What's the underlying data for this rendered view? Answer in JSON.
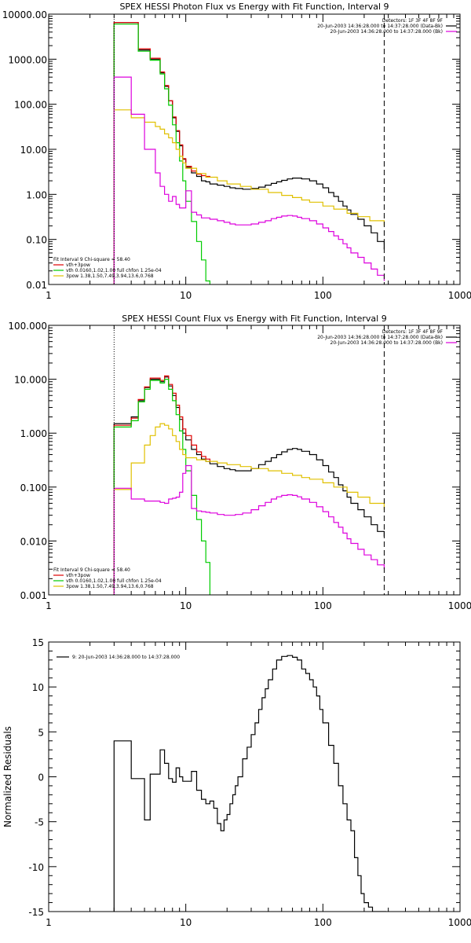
{
  "chart_data": [
    {
      "type": "line",
      "title": "SPEX HESSI Photon Flux vs Energy with Fit Function, Interval 9",
      "xscale": "log",
      "yscale": "log",
      "xlim": [
        1,
        1000
      ],
      "ylim": [
        0.01,
        10000
      ],
      "xticklabels": [
        "1",
        "10",
        "100",
        "1000"
      ],
      "yticklabels": [
        "0.01",
        "0.10",
        "1.00",
        "10.00",
        "100.00",
        "1000.00",
        "10000.00"
      ],
      "vlines": [
        {
          "x": 3,
          "style": "dotted"
        },
        {
          "x": 280,
          "style": "dashed"
        }
      ],
      "legend_top": [
        "Detectors: 1F 3F 4F 8F 9F",
        "20-Jun-2003 14:36:28.000 to 14:37:28.000 (Data-Bk)",
        "20-Jun-2003 14:36:28.000 to 14:37:28.000 (Bk)"
      ],
      "legend_bottom": [
        "Fit Interval 9   Chi-square = 58.40",
        "vth+3pow",
        "vth 0.0160,1.02,1.00  full chfon 1.25e-04",
        "3pow 1.38,1.50,7.49,3.94,13.6,0.768"
      ],
      "series": [
        {
          "color": "#000000",
          "x": [
            3,
            3.5,
            4,
            4.5,
            5,
            5.5,
            6,
            6.5,
            7,
            7.5,
            8,
            8.5,
            9,
            9.5,
            10,
            11,
            12,
            13,
            14,
            15,
            17,
            19,
            21,
            23,
            26,
            30,
            34,
            38,
            42,
            46,
            50,
            55,
            60,
            65,
            70,
            80,
            90,
            100,
            110,
            120,
            130,
            140,
            150,
            160,
            180,
            200,
            225,
            250,
            280
          ],
          "y": [
            6500,
            6500,
            6500,
            1600,
            1600,
            1000,
            1000,
            500,
            250,
            120,
            50,
            25,
            12,
            6,
            4,
            3,
            2.5,
            2.0,
            1.9,
            1.7,
            1.6,
            1.5,
            1.4,
            1.35,
            1.3,
            1.35,
            1.45,
            1.6,
            1.75,
            1.9,
            2.05,
            2.2,
            2.3,
            2.3,
            2.2,
            2.0,
            1.7,
            1.4,
            1.1,
            0.9,
            0.7,
            0.55,
            0.45,
            0.36,
            0.28,
            0.2,
            0.14,
            0.09,
            0.06
          ]
        },
        {
          "color": "#e00000",
          "x": [
            3,
            3.5,
            4,
            4.5,
            5,
            5.5,
            6,
            6.5,
            7,
            7.5,
            8,
            8.5,
            9,
            9.5,
            10,
            11,
            12,
            13,
            14,
            15
          ],
          "y": [
            6500,
            6500,
            6500,
            1700,
            1700,
            1050,
            1050,
            520,
            260,
            120,
            52,
            26,
            12.5,
            6.2,
            4.2,
            3.3,
            2.8,
            2.6,
            2.5,
            2.4
          ]
        },
        {
          "color": "#00cc00",
          "x": [
            3,
            3.5,
            4,
            4.5,
            5,
            5.5,
            6,
            6.5,
            7,
            7.5,
            8,
            8.5,
            9,
            9.5,
            10,
            11,
            12,
            13,
            14,
            15
          ],
          "y": [
            6000,
            6000,
            6000,
            1500,
            1500,
            950,
            950,
            470,
            220,
            95,
            35,
            14,
            5.5,
            2.0,
            0.7,
            0.25,
            0.09,
            0.035,
            0.012,
            0.005
          ]
        },
        {
          "color": "#e0c000",
          "x": [
            3,
            3.5,
            4,
            4.5,
            5,
            5.5,
            6,
            6.5,
            7,
            7.5,
            8,
            8.5,
            9,
            9.5,
            10,
            12,
            14,
            17,
            20,
            25,
            30,
            40,
            50,
            60,
            70,
            80,
            100,
            120,
            150,
            180,
            220,
            280
          ],
          "y": [
            75,
            75,
            50,
            50,
            40,
            40,
            32,
            28,
            22,
            18,
            14,
            10,
            7,
            5,
            3.8,
            2.9,
            2.4,
            2.0,
            1.7,
            1.5,
            1.3,
            1.1,
            0.95,
            0.85,
            0.75,
            0.67,
            0.55,
            0.47,
            0.38,
            0.32,
            0.26,
            0.2
          ]
        },
        {
          "color": "#dd00dd",
          "x": [
            3,
            3.5,
            4,
            4.5,
            5,
            5.5,
            6,
            6.5,
            7,
            7.5,
            8,
            8.5,
            9,
            9.5,
            10,
            11,
            12,
            13,
            14,
            15,
            17,
            19,
            21,
            23,
            26,
            30,
            34,
            38,
            42,
            46,
            50,
            55,
            60,
            65,
            70,
            80,
            90,
            100,
            110,
            120,
            130,
            140,
            150,
            160,
            180,
            200,
            225,
            250,
            280
          ],
          "y": [
            400,
            400,
            60,
            60,
            10,
            10,
            3,
            1.5,
            1.0,
            0.7,
            0.9,
            0.6,
            0.5,
            0.5,
            1.2,
            0.4,
            0.35,
            0.3,
            0.3,
            0.28,
            0.26,
            0.24,
            0.22,
            0.21,
            0.21,
            0.22,
            0.24,
            0.26,
            0.29,
            0.31,
            0.33,
            0.34,
            0.33,
            0.31,
            0.29,
            0.26,
            0.22,
            0.18,
            0.15,
            0.12,
            0.1,
            0.08,
            0.065,
            0.05,
            0.04,
            0.03,
            0.022,
            0.016,
            0.012
          ]
        }
      ]
    },
    {
      "type": "line",
      "title": "SPEX HESSI Count Flux vs Energy with Fit Function, Interval 9",
      "xscale": "log",
      "yscale": "log",
      "xlim": [
        1,
        1000
      ],
      "ylim": [
        0.001,
        100
      ],
      "xticklabels": [
        "1",
        "10",
        "100",
        "1000"
      ],
      "yticklabels": [
        "0.001",
        "0.010",
        "0.100",
        "1.000",
        "10.000",
        "100.000"
      ],
      "vlines": [
        {
          "x": 3,
          "style": "dotted"
        },
        {
          "x": 280,
          "style": "dashed"
        }
      ],
      "legend_top": [
        "Detectors: 1F 3F 4F 8F 9F",
        "20-Jun-2003 14:36:28.000 to 14:37:28.000 (Data-Bk)",
        "20-Jun-2003 14:36:28.000 to 14:37:28.000 (Bk)"
      ],
      "legend_bottom": [
        "Fit Interval 9   Chi-square = 58.40",
        "vth+3pow",
        "vth 0.0160,1.02,1.00  full chfon 1.25e-04",
        "3pow 1.38,1.50,7.49,3.94,13.6,0.768"
      ],
      "series": [
        {
          "color": "#000000",
          "x": [
            3,
            3.5,
            4,
            4.5,
            5,
            5.5,
            6,
            6.5,
            7,
            7.5,
            8,
            8.5,
            9,
            9.5,
            10,
            11,
            12,
            13,
            14,
            15,
            17,
            19,
            21,
            23,
            26,
            30,
            34,
            38,
            42,
            46,
            50,
            55,
            60,
            65,
            70,
            80,
            90,
            100,
            110,
            120,
            130,
            140,
            150,
            160,
            180,
            200,
            225,
            250,
            280
          ],
          "y": [
            1.5,
            1.5,
            2.0,
            4.0,
            7.0,
            10.0,
            10.0,
            9.0,
            11.0,
            7.5,
            5.0,
            3.0,
            1.8,
            1.0,
            0.75,
            0.5,
            0.4,
            0.33,
            0.3,
            0.27,
            0.24,
            0.22,
            0.21,
            0.2,
            0.2,
            0.22,
            0.26,
            0.3,
            0.35,
            0.4,
            0.45,
            0.5,
            0.52,
            0.5,
            0.46,
            0.4,
            0.32,
            0.25,
            0.19,
            0.15,
            0.11,
            0.085,
            0.065,
            0.05,
            0.038,
            0.028,
            0.02,
            0.015,
            0.012
          ]
        },
        {
          "color": "#e00000",
          "x": [
            3,
            3.5,
            4,
            4.5,
            5,
            5.5,
            6,
            6.5,
            7,
            7.5,
            8,
            8.5,
            9,
            9.5,
            10,
            11,
            12,
            13,
            14,
            15
          ],
          "y": [
            1.4,
            1.4,
            1.9,
            4.2,
            7.2,
            10.5,
            10.5,
            9.5,
            11.5,
            8.0,
            5.5,
            3.3,
            2.0,
            1.2,
            0.9,
            0.6,
            0.45,
            0.37,
            0.33,
            0.3
          ]
        },
        {
          "color": "#00cc00",
          "x": [
            3,
            3.5,
            4,
            4.5,
            5,
            5.5,
            6,
            6.5,
            7,
            7.5,
            8,
            8.5,
            9,
            9.5,
            10,
            11,
            12,
            13,
            14,
            15
          ],
          "y": [
            1.3,
            1.3,
            1.7,
            3.8,
            6.5,
            9.5,
            9.5,
            8.5,
            10,
            6.5,
            4.0,
            2.2,
            1.1,
            0.5,
            0.2,
            0.07,
            0.025,
            0.01,
            0.004,
            0.001
          ]
        },
        {
          "color": "#e0c000",
          "x": [
            3,
            3.5,
            4,
            4.5,
            5,
            5.5,
            6,
            6.5,
            7,
            7.5,
            8,
            8.5,
            9,
            9.5,
            10,
            12,
            14,
            17,
            20,
            25,
            30,
            40,
            50,
            60,
            70,
            80,
            100,
            120,
            150,
            180,
            220,
            280
          ],
          "y": [
            0.09,
            0.09,
            0.28,
            0.28,
            0.6,
            0.9,
            1.3,
            1.5,
            1.4,
            1.2,
            0.9,
            0.7,
            0.5,
            0.4,
            0.35,
            0.32,
            0.3,
            0.28,
            0.26,
            0.24,
            0.22,
            0.2,
            0.18,
            0.165,
            0.15,
            0.14,
            0.12,
            0.1,
            0.08,
            0.065,
            0.05,
            0.038
          ]
        },
        {
          "color": "#dd00dd",
          "x": [
            3,
            3.5,
            4,
            4.5,
            5,
            5.5,
            6,
            6.5,
            7,
            7.5,
            8,
            8.5,
            9,
            9.5,
            10,
            11,
            12,
            13,
            14,
            15,
            17,
            19,
            21,
            23,
            26,
            30,
            34,
            38,
            42,
            46,
            50,
            55,
            60,
            65,
            70,
            80,
            90,
            100,
            110,
            120,
            130,
            140,
            150,
            160,
            180,
            200,
            225,
            250,
            280
          ],
          "y": [
            0.095,
            0.095,
            0.06,
            0.06,
            0.055,
            0.055,
            0.055,
            0.052,
            0.05,
            0.06,
            0.062,
            0.065,
            0.08,
            0.18,
            0.25,
            0.04,
            0.036,
            0.035,
            0.034,
            0.033,
            0.031,
            0.03,
            0.03,
            0.031,
            0.033,
            0.038,
            0.045,
            0.052,
            0.06,
            0.066,
            0.07,
            0.072,
            0.07,
            0.066,
            0.06,
            0.052,
            0.043,
            0.035,
            0.028,
            0.022,
            0.018,
            0.014,
            0.011,
            0.009,
            0.007,
            0.0055,
            0.0045,
            0.0036,
            0.003
          ]
        }
      ]
    },
    {
      "type": "line",
      "title": "",
      "xscale": "log",
      "yscale": "linear",
      "xlim": [
        1,
        1000
      ],
      "ylim": [
        -15,
        15
      ],
      "xticklabels": [
        "1",
        "10",
        "100",
        "1000"
      ],
      "yticklabels": [
        "-15",
        "-10",
        "-5",
        "0",
        "5",
        "10",
        "15"
      ],
      "ylabel": "Normalized Residuals",
      "legend": [
        "9: 20-Jun-2003 14:36:28.000 to 14:37:28.000"
      ],
      "series": [
        {
          "color": "#000000",
          "x": [
            3,
            3.5,
            4,
            4.5,
            5,
            5.5,
            6,
            6.5,
            7,
            7.5,
            8,
            8.5,
            9,
            9.5,
            10,
            11,
            12,
            13,
            14,
            15,
            16,
            17,
            18,
            19,
            20,
            21,
            22,
            23,
            24,
            26,
            28,
            30,
            32,
            34,
            36,
            38,
            40,
            43,
            46,
            50,
            55,
            60,
            65,
            70,
            75,
            80,
            85,
            90,
            95,
            100,
            110,
            120,
            130,
            140,
            150,
            160,
            170,
            180,
            190,
            200,
            215,
            230,
            250,
            270,
            290
          ],
          "y": [
            4,
            4,
            -0.2,
            -0.2,
            -4.8,
            0.3,
            0.3,
            3,
            1.5,
            -0.2,
            -0.6,
            1.0,
            0,
            -0.5,
            -0.5,
            0.6,
            -1.5,
            -2.5,
            -3,
            -2.7,
            -3.5,
            -5.2,
            -6,
            -4.8,
            -4.2,
            -3,
            -2,
            -1,
            0,
            2,
            3.3,
            4.7,
            6,
            7.5,
            8.8,
            9.8,
            10.8,
            12,
            13,
            13.4,
            13.5,
            13.3,
            13,
            12,
            11.5,
            10.8,
            10,
            9,
            7.5,
            6,
            3.5,
            1.5,
            -1,
            -3,
            -4.8,
            -6,
            -9,
            -11,
            -13,
            -14,
            -14.5,
            -15,
            -15,
            -15,
            -15
          ]
        }
      ]
    }
  ]
}
